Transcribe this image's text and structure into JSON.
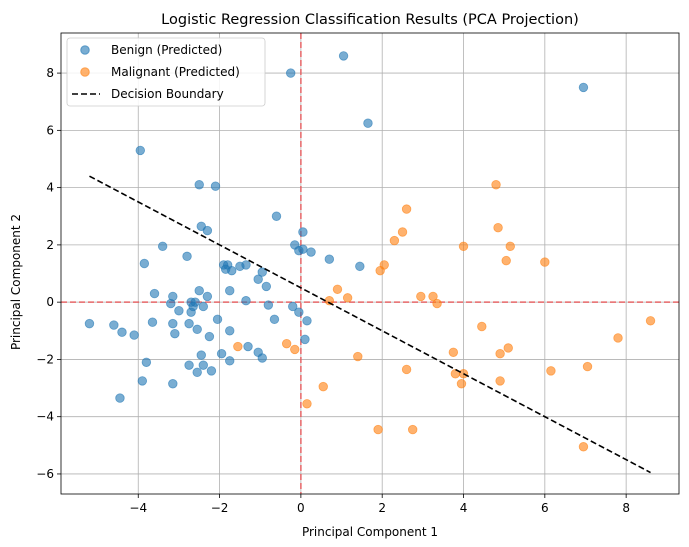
{
  "chart_data": {
    "type": "scatter",
    "title": "Logistic Regression Classification Results (PCA Projection)",
    "xlabel": "Principal Component 1",
    "ylabel": "Principal Component 2",
    "xlim": [
      -5.9,
      9.3
    ],
    "ylim": [
      -6.7,
      9.4
    ],
    "xticks": [
      -4,
      -2,
      0,
      2,
      4,
      6,
      8
    ],
    "yticks": [
      -6,
      -4,
      -2,
      0,
      2,
      4,
      6,
      8
    ],
    "grid": true,
    "legend_position": "top-left",
    "reference_lines": {
      "x": 0,
      "y": 0,
      "color": "#e8595b",
      "style": "dashed"
    },
    "decision_boundary": {
      "name": "Decision Boundary",
      "x": [
        -5.2,
        8.6
      ],
      "y": [
        4.4,
        -5.95
      ],
      "color": "#000000",
      "style": "dashed"
    },
    "series": [
      {
        "name": "Benign (Predicted)",
        "color": "#1f77b4",
        "points": [
          [
            -5.2,
            -0.75
          ],
          [
            -4.6,
            -0.8
          ],
          [
            -4.4,
            -1.05
          ],
          [
            -4.45,
            -3.35
          ],
          [
            -4.1,
            -1.15
          ],
          [
            -3.9,
            -2.75
          ],
          [
            -3.8,
            -2.1
          ],
          [
            -3.95,
            5.3
          ],
          [
            -3.6,
            0.3
          ],
          [
            -3.65,
            -0.7
          ],
          [
            -3.4,
            1.95
          ],
          [
            -3.85,
            1.35
          ],
          [
            -3.15,
            -2.85
          ],
          [
            -3.15,
            0.2
          ],
          [
            -3.2,
            -0.05
          ],
          [
            -3.15,
            -0.75
          ],
          [
            -3.1,
            -1.1
          ],
          [
            -3.0,
            -0.3
          ],
          [
            -2.75,
            -2.2
          ],
          [
            -2.8,
            1.6
          ],
          [
            -2.7,
            0.0
          ],
          [
            -2.6,
            0.0
          ],
          [
            -2.65,
            -0.15
          ],
          [
            -2.7,
            -0.35
          ],
          [
            -2.75,
            -0.75
          ],
          [
            -2.55,
            -0.95
          ],
          [
            -2.55,
            -2.45
          ],
          [
            -2.45,
            -1.85
          ],
          [
            -2.4,
            -2.2
          ],
          [
            -2.5,
            0.4
          ],
          [
            -2.4,
            -0.15
          ],
          [
            -2.3,
            0.2
          ],
          [
            -2.25,
            -1.2
          ],
          [
            -2.3,
            2.5
          ],
          [
            -2.45,
            2.65
          ],
          [
            -2.5,
            4.1
          ],
          [
            -2.1,
            4.05
          ],
          [
            -2.2,
            -2.4
          ],
          [
            -2.05,
            -0.6
          ],
          [
            -1.95,
            -1.8
          ],
          [
            -1.9,
            1.3
          ],
          [
            -1.85,
            1.15
          ],
          [
            -1.8,
            1.3
          ],
          [
            -1.75,
            0.4
          ],
          [
            -1.7,
            1.1
          ],
          [
            -1.75,
            -1.0
          ],
          [
            -1.75,
            -2.05
          ],
          [
            -1.5,
            1.25
          ],
          [
            -1.35,
            1.3
          ],
          [
            -1.35,
            0.05
          ],
          [
            -1.3,
            -1.55
          ],
          [
            -1.05,
            0.8
          ],
          [
            -1.05,
            -1.75
          ],
          [
            -0.95,
            1.05
          ],
          [
            -0.95,
            -1.95
          ],
          [
            -0.85,
            0.55
          ],
          [
            -0.8,
            -0.1
          ],
          [
            -0.65,
            -0.6
          ],
          [
            -0.6,
            3.0
          ],
          [
            -0.25,
            8.0
          ],
          [
            -0.2,
            -0.15
          ],
          [
            -0.15,
            2.0
          ],
          [
            -0.05,
            1.8
          ],
          [
            -0.05,
            -0.35
          ],
          [
            0.05,
            2.45
          ],
          [
            0.05,
            1.85
          ],
          [
            0.1,
            -1.3
          ],
          [
            0.15,
            -0.65
          ],
          [
            0.25,
            1.75
          ],
          [
            0.7,
            1.5
          ],
          [
            1.05,
            8.6
          ],
          [
            1.45,
            1.25
          ],
          [
            1.65,
            6.25
          ],
          [
            6.95,
            7.5
          ]
        ]
      },
      {
        "name": "Malignant (Predicted)",
        "color": "#ff7f0e",
        "points": [
          [
            -1.55,
            -1.55
          ],
          [
            -0.35,
            -1.45
          ],
          [
            -0.15,
            -1.65
          ],
          [
            0.15,
            -3.55
          ],
          [
            0.55,
            -2.95
          ],
          [
            0.7,
            0.05
          ],
          [
            0.9,
            0.45
          ],
          [
            1.15,
            0.15
          ],
          [
            1.4,
            -1.9
          ],
          [
            1.9,
            -4.45
          ],
          [
            1.95,
            1.1
          ],
          [
            2.05,
            1.3
          ],
          [
            2.3,
            2.15
          ],
          [
            2.5,
            2.45
          ],
          [
            2.6,
            3.25
          ],
          [
            2.6,
            -2.35
          ],
          [
            2.75,
            -4.45
          ],
          [
            2.95,
            0.2
          ],
          [
            3.25,
            0.2
          ],
          [
            3.35,
            -0.05
          ],
          [
            3.75,
            -1.75
          ],
          [
            3.8,
            -2.5
          ],
          [
            3.95,
            -2.85
          ],
          [
            4.0,
            -2.5
          ],
          [
            4.0,
            1.95
          ],
          [
            4.45,
            -0.85
          ],
          [
            4.8,
            4.1
          ],
          [
            4.85,
            2.6
          ],
          [
            4.9,
            -1.8
          ],
          [
            4.9,
            -2.75
          ],
          [
            5.05,
            1.45
          ],
          [
            5.1,
            -1.6
          ],
          [
            5.15,
            1.95
          ],
          [
            6.0,
            1.4
          ],
          [
            6.15,
            -2.4
          ],
          [
            6.95,
            -5.05
          ],
          [
            7.05,
            -2.25
          ],
          [
            7.8,
            -1.25
          ],
          [
            8.6,
            -0.65
          ]
        ]
      }
    ]
  }
}
